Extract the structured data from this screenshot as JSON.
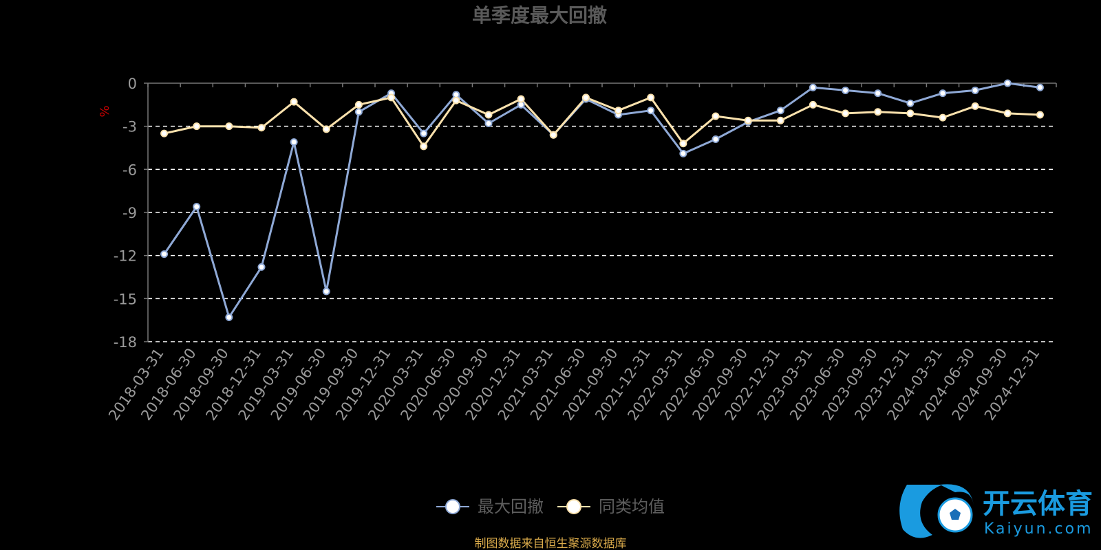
{
  "chart_data": {
    "type": "line",
    "title": "单季度最大回撤",
    "ylabel": "%",
    "ylim": [
      -18,
      0
    ],
    "yticks": [
      0,
      -3,
      -6,
      -9,
      -12,
      -15,
      -18
    ],
    "grid": "dashed horizontal",
    "legend_placement": "bottom-center",
    "categories": [
      "2018-03-31",
      "2018-06-30",
      "2018-09-30",
      "2018-12-31",
      "2019-03-31",
      "2019-06-30",
      "2019-09-30",
      "2019-12-31",
      "2020-03-31",
      "2020-06-30",
      "2020-09-30",
      "2020-12-31",
      "2021-03-31",
      "2021-06-30",
      "2021-09-30",
      "2021-12-31",
      "2022-03-31",
      "2022-06-30",
      "2022-09-30",
      "2022-12-31",
      "2023-03-31",
      "2023-06-30",
      "2023-09-30",
      "2023-12-31",
      "2024-03-31",
      "2024-06-30",
      "2024-09-30",
      "2024-12-31"
    ],
    "series": [
      {
        "name": "最大回撤",
        "color": "#8fa9d6",
        "values": [
          -11.9,
          -8.6,
          -16.3,
          -12.8,
          -4.1,
          -14.5,
          -2.0,
          -0.7,
          -3.5,
          -0.8,
          -2.8,
          -1.5,
          -3.6,
          -1.1,
          -2.2,
          -1.9,
          -4.9,
          -3.9,
          -2.7,
          -1.9,
          -0.3,
          -0.5,
          -0.7,
          -1.4,
          -0.7,
          -0.5,
          0.0,
          -0.3
        ]
      },
      {
        "name": "同类均值",
        "color": "#fbe2ad",
        "values": [
          -3.5,
          -3.0,
          -3.0,
          -3.1,
          -1.3,
          -3.2,
          -1.5,
          -1.0,
          -4.4,
          -1.2,
          -2.2,
          -1.1,
          -3.6,
          -1.0,
          -1.9,
          -1.0,
          -4.2,
          -2.3,
          -2.6,
          -2.6,
          -1.5,
          -2.1,
          -2.0,
          -2.1,
          -2.4,
          -1.6,
          -2.1,
          -2.2
        ]
      }
    ],
    "source_note": "制图数据来自恒生聚源数据库"
  },
  "watermark": {
    "cn": "开云体育",
    "en": "Kaiyun.com"
  },
  "colors": {
    "title": "#5a5a5a",
    "axis": "#777777",
    "tick_text": "#9a9a9a",
    "grid": "#ffffff",
    "ylabel": "#cc0000",
    "source": "#d8a94a",
    "legend_text": "#5e5e5e"
  }
}
